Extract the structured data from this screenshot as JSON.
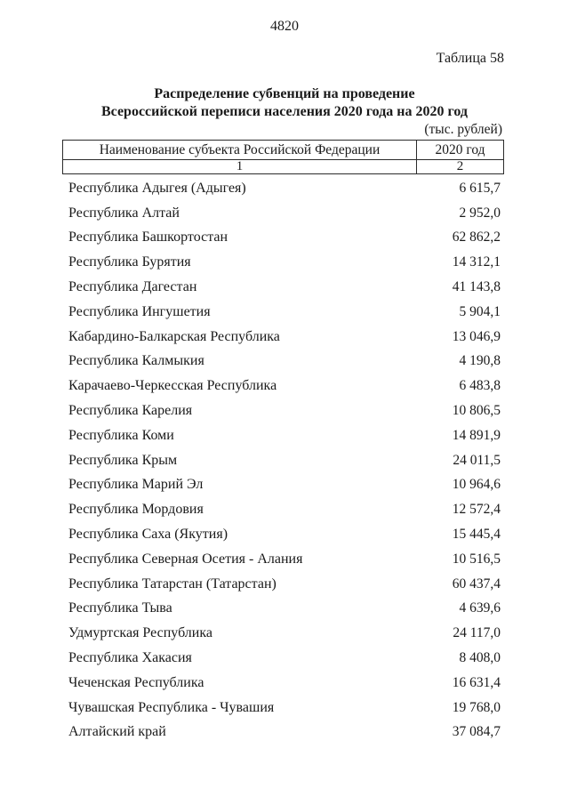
{
  "page": {
    "page_number": "4820",
    "table_label": "Таблица 58",
    "title_line1": "Распределение субвенций на проведение",
    "title_line2": "Всероссийской переписи населения 2020 года на 2020 год",
    "units_note": "(тыс. рублей)"
  },
  "colors": {
    "ink": "#1a1a1a",
    "border": "#2b2b2b",
    "background": "#ffffff"
  },
  "table": {
    "col1_header": "Наименование субъекта Российской Федерации",
    "col2_header": "2020 год",
    "col1_number": "1",
    "col2_number": "2",
    "rows": [
      {
        "name": "Республика Адыгея (Адыгея)",
        "value": "6 615,7"
      },
      {
        "name": "Республика Алтай",
        "value": "2 952,0"
      },
      {
        "name": "Республика Башкортостан",
        "value": "62 862,2"
      },
      {
        "name": "Республика Бурятия",
        "value": "14 312,1"
      },
      {
        "name": "Республика Дагестан",
        "value": "41 143,8"
      },
      {
        "name": "Республика Ингушетия",
        "value": "5 904,1"
      },
      {
        "name": "Кабардино-Балкарская Республика",
        "value": "13 046,9"
      },
      {
        "name": "Республика Калмыкия",
        "value": "4 190,8"
      },
      {
        "name": "Карачаево-Черкесская Республика",
        "value": "6 483,8"
      },
      {
        "name": "Республика Карелия",
        "value": "10 806,5"
      },
      {
        "name": "Республика Коми",
        "value": "14 891,9"
      },
      {
        "name": "Республика Крым",
        "value": "24 011,5"
      },
      {
        "name": "Республика Марий Эл",
        "value": "10 964,6"
      },
      {
        "name": "Республика Мордовия",
        "value": "12 572,4"
      },
      {
        "name": "Республика Саха (Якутия)",
        "value": "15 445,4"
      },
      {
        "name": "Республика Северная Осетия - Алания",
        "value": "10 516,5"
      },
      {
        "name": "Республика Татарстан (Татарстан)",
        "value": "60 437,4"
      },
      {
        "name": "Республика Тыва",
        "value": "4 639,6"
      },
      {
        "name": "Удмуртская Республика",
        "value": "24 117,0"
      },
      {
        "name": "Республика Хакасия",
        "value": "8 408,0"
      },
      {
        "name": "Чеченская Республика",
        "value": "16 631,4"
      },
      {
        "name": "Чувашская Республика - Чувашия",
        "value": "19 768,0"
      },
      {
        "name": "Алтайский край",
        "value": "37 084,7"
      }
    ]
  }
}
